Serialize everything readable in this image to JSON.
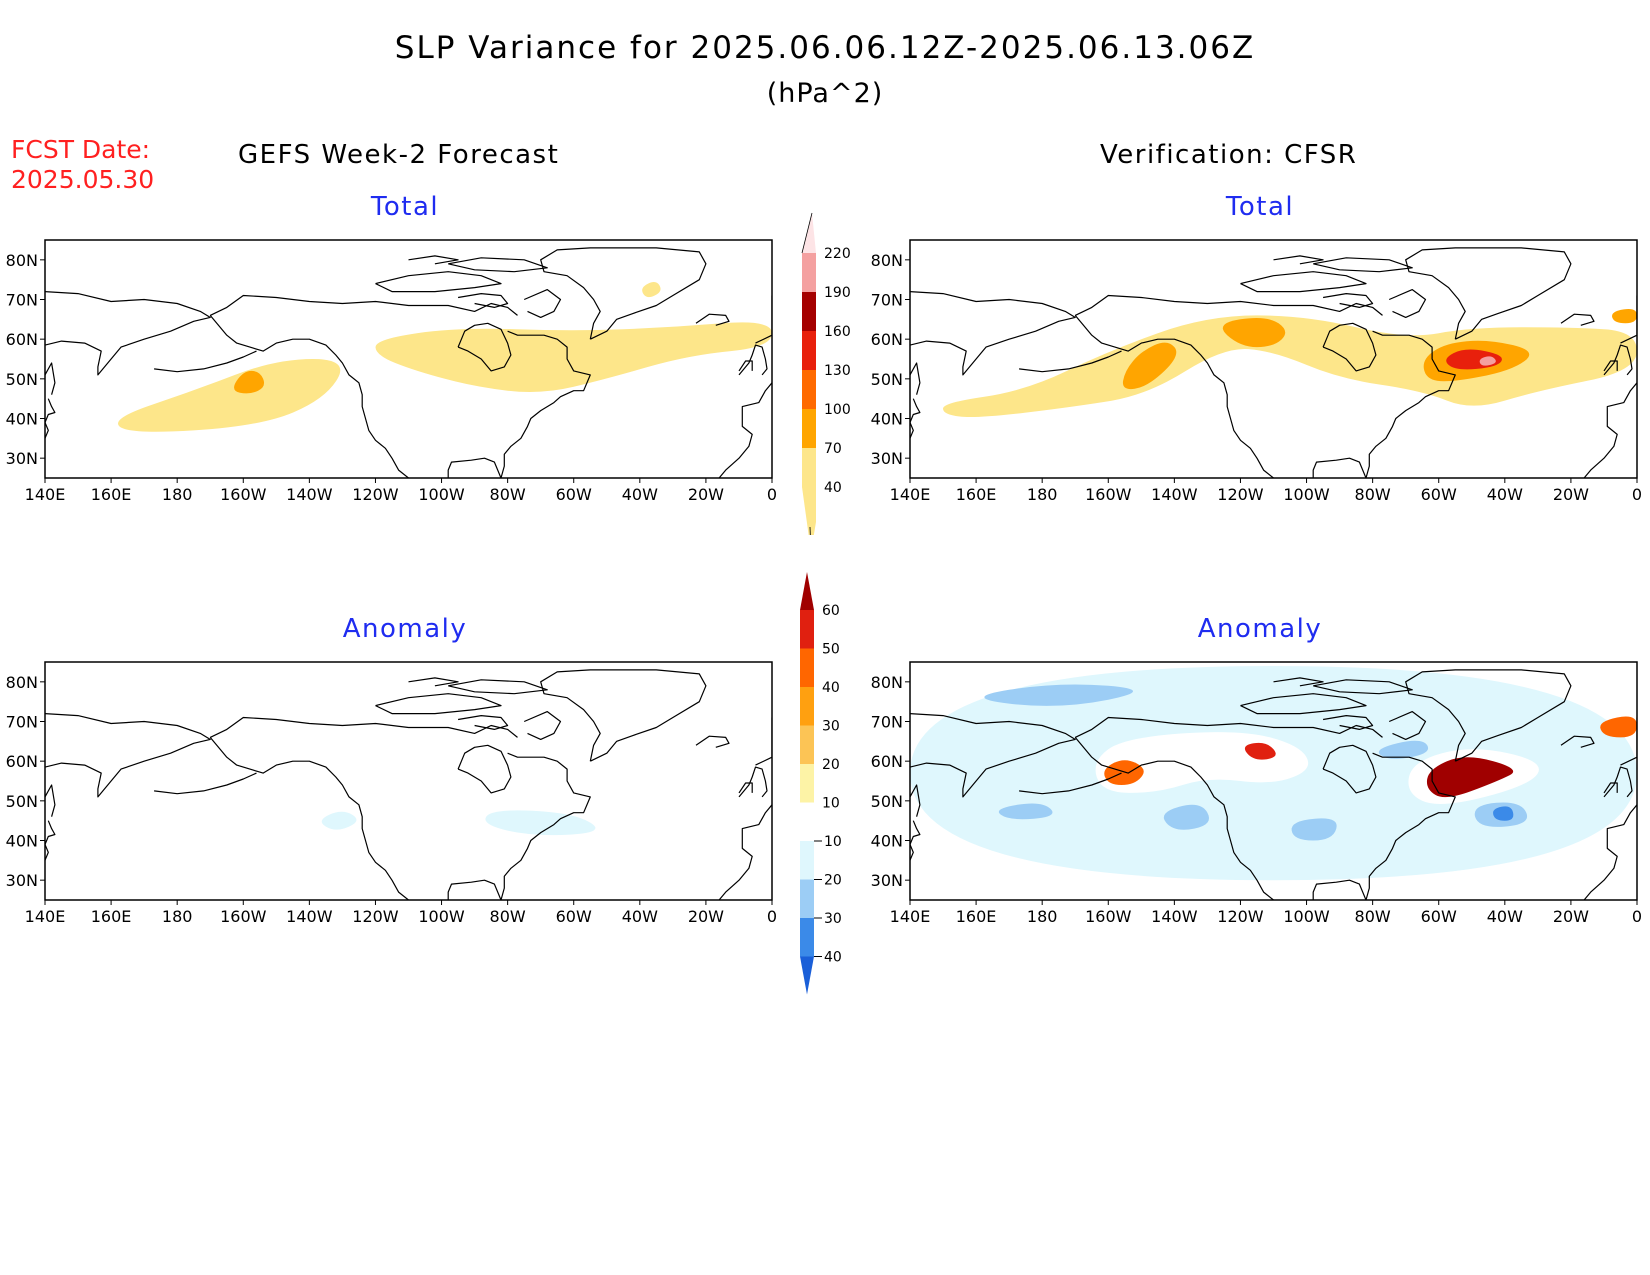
{
  "title": "SLP Variance for 2025.06.06.12Z-2025.06.13.06Z",
  "units": "(hPa^2)",
  "fcst_date_label": "FCST Date:",
  "fcst_date_value": "2025.05.30",
  "columns": {
    "left": "GEFS Week-2 Forecast",
    "right": "Verification: CFSR"
  },
  "panel_titles": {
    "total": "Total",
    "anomaly": "Anomaly"
  },
  "axes": {
    "lat_ticks": [
      "80N",
      "70N",
      "60N",
      "50N",
      "40N",
      "30N"
    ],
    "lon_ticks": [
      "140E",
      "160E",
      "180",
      "160W",
      "140W",
      "120W",
      "100W",
      "80W",
      "60W",
      "40W",
      "20W",
      "0"
    ]
  },
  "colors": {
    "land_outline": "#000000",
    "panel_title": "#1f2cf0",
    "fcst_date": "#ff2020"
  },
  "colorbars": {
    "total": {
      "labels": [
        "40",
        "70",
        "100",
        "130",
        "160",
        "190",
        "220"
      ],
      "colors": [
        "#fde68a",
        "#ffa500",
        "#ff6a00",
        "#e8200c",
        "#a50000",
        "#f4a0a0",
        "#fde4e6"
      ]
    },
    "anomaly": {
      "labels": [
        "-40",
        "-30",
        "-20",
        "-10",
        "10",
        "20",
        "30",
        "40",
        "50",
        "60"
      ],
      "colors": [
        "#1a5fd8",
        "#3b8ae8",
        "#9ccdf5",
        "#dff7fd",
        "#ffffff",
        "#fdf3a6",
        "#fcc455",
        "#ffa010",
        "#ff6600",
        "#e02010",
        "#a00000"
      ]
    }
  },
  "map_data": {
    "domain": {
      "lon_range": [
        "140E",
        "0"
      ],
      "lat_range": [
        "25N",
        "85N"
      ]
    },
    "panels": [
      {
        "name": "gefs-total",
        "features": [
          {
            "level": 0,
            "desc": "band",
            "pts": [
              [
                160,
                40
              ],
              [
                185,
                47
              ],
              [
                210,
                55
              ],
              [
                232,
                55
              ],
              [
                225,
                45
              ],
              [
                205,
                38
              ],
              [
                165,
                36
              ]
            ]
          },
          {
            "level": 1,
            "desc": "max",
            "pts": [
              [
                196,
                47
              ],
              [
                200,
                52
              ],
              [
                205,
                52
              ],
              [
                207,
                48
              ],
              [
                202,
                46
              ]
            ]
          },
          {
            "level": 0,
            "desc": "band",
            "pts": [
              [
                240,
                60
              ],
              [
                265,
                63
              ],
              [
                300,
                62
              ],
              [
                330,
                63
              ],
              [
                360,
                65
              ],
              [
                360,
                58
              ],
              [
                335,
                56
              ],
              [
                310,
                50
              ],
              [
                290,
                46
              ],
              [
                270,
                48
              ],
              [
                252,
                52
              ],
              [
                240,
                56
              ]
            ]
          },
          {
            "level": 0,
            "desc": "small",
            "pts": [
              [
                320,
                73
              ],
              [
                325,
                75
              ],
              [
                327,
                72
              ],
              [
                322,
                70
              ]
            ]
          }
        ]
      },
      {
        "name": "cfsr-total",
        "features": [
          {
            "level": 0,
            "desc": "band",
            "pts": [
              [
                150,
                44
              ],
              [
                175,
                47
              ],
              [
                200,
                57
              ],
              [
                230,
                66
              ],
              [
                260,
                66
              ],
              [
                290,
                60
              ],
              [
                310,
                63
              ],
              [
                340,
                63
              ],
              [
                360,
                62
              ],
              [
                360,
                52
              ],
              [
                330,
                47
              ],
              [
                310,
                42
              ],
              [
                295,
                47
              ],
              [
                270,
                50
              ],
              [
                250,
                57
              ],
              [
                235,
                58
              ],
              [
                212,
                46
              ],
              [
                190,
                43
              ],
              [
                160,
                40
              ],
              [
                150,
                41
              ]
            ]
          },
          {
            "level": 1,
            "desc": "alaska",
            "pts": [
              [
                205,
                52
              ],
              [
                210,
                57
              ],
              [
                218,
                60
              ],
              [
                222,
                56
              ],
              [
                212,
                48
              ],
              [
                204,
                47
              ]
            ]
          },
          {
            "level": 1,
            "desc": "bc",
            "pts": [
              [
                232,
                64
              ],
              [
                248,
                66
              ],
              [
                255,
                62
              ],
              [
                250,
                58
              ],
              [
                240,
                58
              ]
            ]
          },
          {
            "level": 1,
            "desc": "atl",
            "pts": [
              [
                295,
                55
              ],
              [
                302,
                59
              ],
              [
                315,
                60
              ],
              [
                330,
                57
              ],
              [
                322,
                52
              ],
              [
                303,
                49
              ],
              [
                296,
                50
              ]
            ]
          },
          {
            "level": 1,
            "desc": "ne",
            "pts": [
              [
                352,
                67
              ],
              [
                360,
                68
              ],
              [
                360,
                64
              ],
              [
                353,
                64
              ]
            ]
          },
          {
            "level": 3,
            "desc": "atl-core",
            "pts": [
              [
                301,
                55
              ],
              [
                308,
                58
              ],
              [
                320,
                56
              ],
              [
                318,
                53
              ],
              [
                305,
                52
              ]
            ]
          },
          {
            "level": 5,
            "desc": "atl-peak",
            "pts": [
              [
                312,
                55
              ],
              [
                316,
                56
              ],
              [
                318,
                54
              ],
              [
                313,
                53
              ]
            ]
          }
        ]
      },
      {
        "name": "gefs-anomaly",
        "features": [
          {
            "level": 4,
            "desc": "pos",
            "pts": [
              [
                196,
                55
              ],
              [
                205,
                60
              ],
              [
                215,
                56
              ],
              [
                208,
                52
              ],
              [
                198,
                51
              ]
            ]
          },
          {
            "level": 4,
            "desc": "pos",
            "pts": [
              [
                240,
                62
              ],
              [
                248,
                63
              ],
              [
                248,
                60
              ],
              [
                240,
                60
              ]
            ]
          },
          {
            "level": 4,
            "desc": "pos",
            "pts": [
              [
                278,
                62
              ],
              [
                290,
                62
              ],
              [
                290,
                58
              ],
              [
                280,
                58
              ]
            ]
          },
          {
            "level": 4,
            "desc": "pos",
            "pts": [
              [
                350,
                63
              ],
              [
                360,
                65
              ],
              [
                360,
                57
              ],
              [
                352,
                57
              ]
            ]
          },
          {
            "level": 3,
            "desc": "neg",
            "pts": [
              [
                222,
                45
              ],
              [
                230,
                48
              ],
              [
                236,
                45
              ],
              [
                228,
                42
              ]
            ]
          },
          {
            "level": 3,
            "desc": "neg",
            "pts": [
              [
                275,
                48
              ],
              [
                300,
                47
              ],
              [
                310,
                42
              ],
              [
                288,
                41
              ],
              [
                272,
                44
              ]
            ]
          }
        ]
      },
      {
        "name": "cfsr-anomaly",
        "features": [
          {
            "level": 3,
            "desc": "bg-neg",
            "pts": [
              [
                140,
                30
              ],
              [
                140,
                84
              ],
              [
                360,
                84
              ],
              [
                360,
                30
              ]
            ]
          },
          {
            "level": 2,
            "desc": "neg",
            "pts": [
              [
                155,
                76
              ],
              [
                185,
                80
              ],
              [
                215,
                78
              ],
              [
                185,
                73
              ]
            ]
          },
          {
            "level": 2,
            "desc": "neg",
            "pts": [
              [
                165,
                48
              ],
              [
                180,
                50
              ],
              [
                185,
                46
              ],
              [
                170,
                45
              ]
            ]
          },
          {
            "level": 2,
            "desc": "neg",
            "pts": [
              [
                215,
                47
              ],
              [
                228,
                50
              ],
              [
                232,
                44
              ],
              [
                220,
                42
              ]
            ]
          },
          {
            "level": 2,
            "desc": "neg",
            "pts": [
              [
                255,
                45
              ],
              [
                270,
                46
              ],
              [
                268,
                40
              ],
              [
                256,
                40
              ]
            ]
          },
          {
            "level": 2,
            "desc": "neg",
            "pts": [
              [
                280,
                63
              ],
              [
                295,
                66
              ],
              [
                298,
                62
              ],
              [
                285,
                60
              ]
            ]
          },
          {
            "level": 2,
            "desc": "neg",
            "pts": [
              [
                310,
                49
              ],
              [
                325,
                50
              ],
              [
                328,
                44
              ],
              [
                312,
                43
              ]
            ]
          },
          {
            "level": 1,
            "desc": "neg-core",
            "pts": [
              [
                316,
                48
              ],
              [
                322,
                49
              ],
              [
                323,
                45
              ],
              [
                317,
                45
              ]
            ]
          },
          {
            "level": 4,
            "desc": "pos",
            "pts": [
              [
                195,
                60
              ],
              [
                205,
                66
              ],
              [
                240,
                68
              ],
              [
                258,
                64
              ],
              [
                262,
                58
              ],
              [
                250,
                54
              ],
              [
                230,
                56
              ],
              [
                215,
                52
              ],
              [
                198,
                52
              ]
            ]
          },
          {
            "level": 8,
            "desc": "pos",
            "pts": [
              [
                198,
                58
              ],
              [
                205,
                61
              ],
              [
                212,
                58
              ],
              [
                208,
                54
              ],
              [
                200,
                54
              ]
            ]
          },
          {
            "level": 9,
            "desc": "pos",
            "pts": [
              [
                240,
                64
              ],
              [
                248,
                65
              ],
              [
                252,
                61
              ],
              [
                244,
                60
              ]
            ]
          },
          {
            "level": 4,
            "desc": "pos",
            "pts": [
              [
                292,
                60
              ],
              [
                310,
                64
              ],
              [
                332,
                60
              ],
              [
                328,
                54
              ],
              [
                300,
                48
              ],
              [
                290,
                52
              ]
            ]
          },
          {
            "level": 10,
            "desc": "pos",
            "pts": [
              [
                297,
                58
              ],
              [
                308,
                62
              ],
              [
                325,
                58
              ],
              [
                318,
                55
              ],
              [
                302,
                50
              ],
              [
                296,
                53
              ]
            ]
          },
          {
            "level": 8,
            "desc": "pos",
            "pts": [
              [
                348,
                70
              ],
              [
                360,
                72
              ],
              [
                360,
                66
              ],
              [
                350,
                66
              ]
            ]
          }
        ]
      }
    ]
  }
}
